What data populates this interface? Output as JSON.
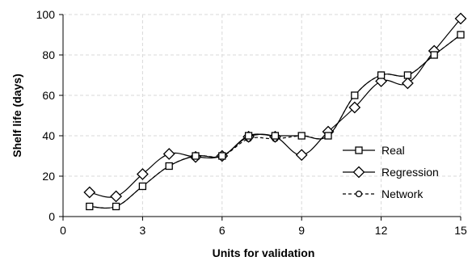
{
  "chart_data": {
    "type": "line",
    "title": "",
    "xlabel": "Units for validation",
    "ylabel": "Shelf life (days)",
    "xlim": [
      0,
      15
    ],
    "ylim": [
      0,
      100
    ],
    "xticks": [
      0,
      3,
      6,
      9,
      12,
      15
    ],
    "yticks": [
      0,
      20,
      40,
      60,
      80,
      100
    ],
    "grid": true,
    "legend_position": "right",
    "x": [
      1,
      2,
      3,
      4,
      5,
      6,
      7,
      8,
      9,
      10,
      11,
      12,
      13,
      14,
      15
    ],
    "series": [
      {
        "name": "Real",
        "marker": "square",
        "line": "solid",
        "values": [
          5,
          5,
          15,
          25,
          30,
          30,
          40,
          40,
          40,
          40,
          60,
          70,
          70,
          80,
          90
        ]
      },
      {
        "name": "Regression",
        "marker": "diamond",
        "line": "solid",
        "values": [
          12,
          10,
          21,
          31,
          29.5,
          30,
          39.5,
          39.5,
          30.5,
          42,
          54,
          67,
          66,
          82,
          98
        ]
      },
      {
        "name": "Network",
        "marker": "circle",
        "line": "dashed",
        "values": [
          5,
          5,
          15,
          25,
          30,
          30,
          38.5,
          38.5,
          40,
          40,
          60,
          70,
          70,
          80,
          90
        ]
      }
    ]
  }
}
